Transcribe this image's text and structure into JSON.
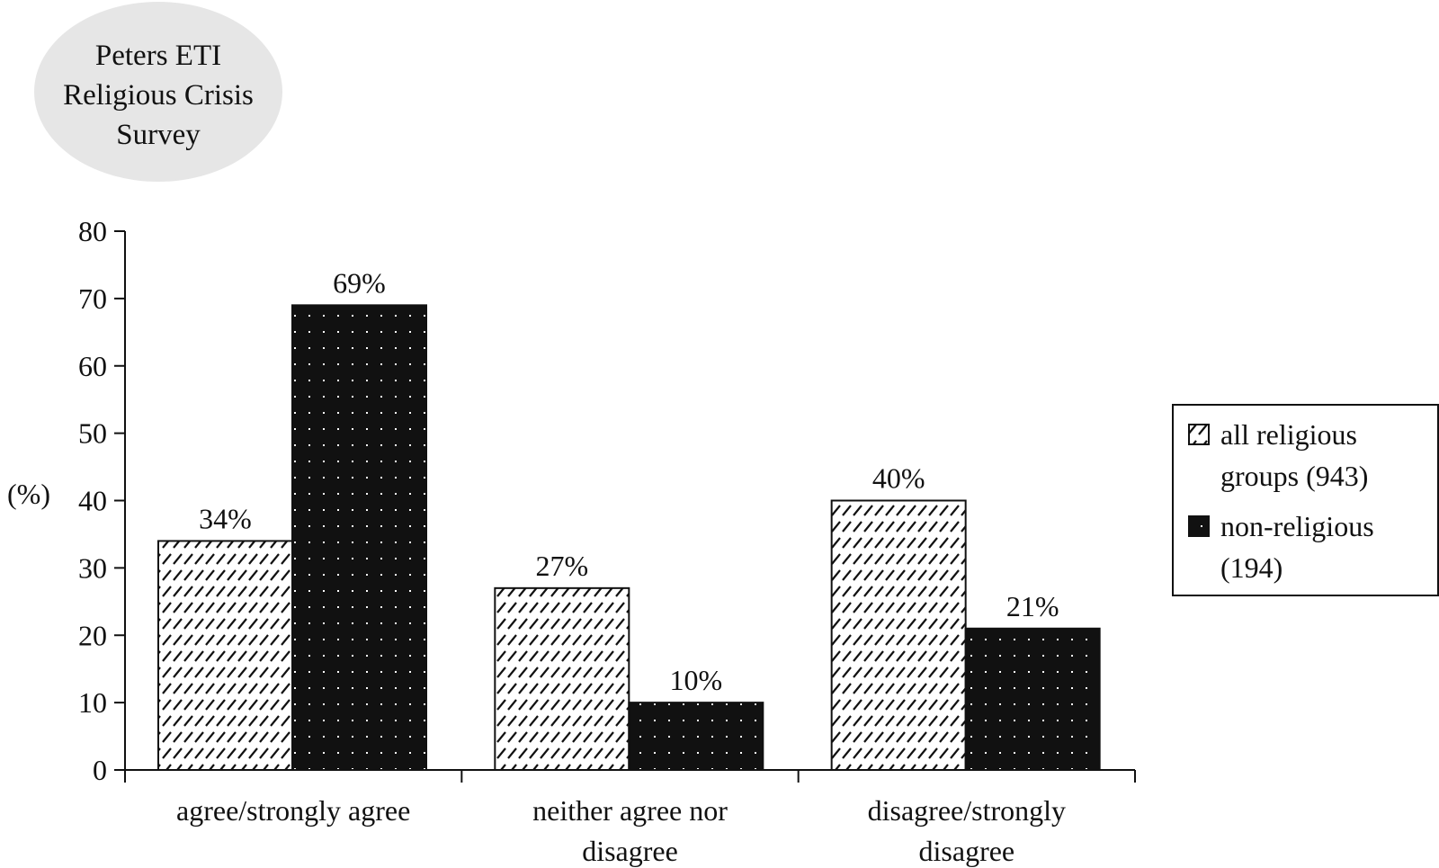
{
  "chart_data": {
    "type": "bar",
    "title": "Peters ETI Religious Crisis Survey",
    "title_lines": [
      "Peters ETI",
      "Religious Crisis",
      "Survey"
    ],
    "ylabel": "(%)",
    "xlabel": "",
    "ylim": [
      0,
      80
    ],
    "yticks": [
      0,
      10,
      20,
      30,
      40,
      50,
      60,
      70,
      80
    ],
    "grid": false,
    "legend_position": "right",
    "categories": [
      "agree/strongly agree",
      "neither agree nor disagree",
      "disagree/strongly disagree"
    ],
    "category_lines": [
      [
        "agree/strongly agree"
      ],
      [
        "neither agree nor",
        "disagree"
      ],
      [
        "disagree/strongly",
        "disagree"
      ]
    ],
    "series": [
      {
        "name": "all religious groups (943)",
        "legend_lines": [
          "all religious",
          "groups (943)"
        ],
        "values": [
          34,
          27,
          40
        ],
        "labels": [
          "34%",
          "27%",
          "40%"
        ],
        "fill": "hatched-white",
        "color": "#ffffff"
      },
      {
        "name": "non-religious (194)",
        "legend_lines": [
          "non-religious",
          "(194)"
        ],
        "values": [
          69,
          10,
          21
        ],
        "labels": [
          "69%",
          "10%",
          "21%"
        ],
        "fill": "dotted-black",
        "color": "#111111"
      }
    ],
    "colors": {
      "title_bubble": "#e6e6e6",
      "axis": "#111111",
      "text": "#111111"
    }
  }
}
